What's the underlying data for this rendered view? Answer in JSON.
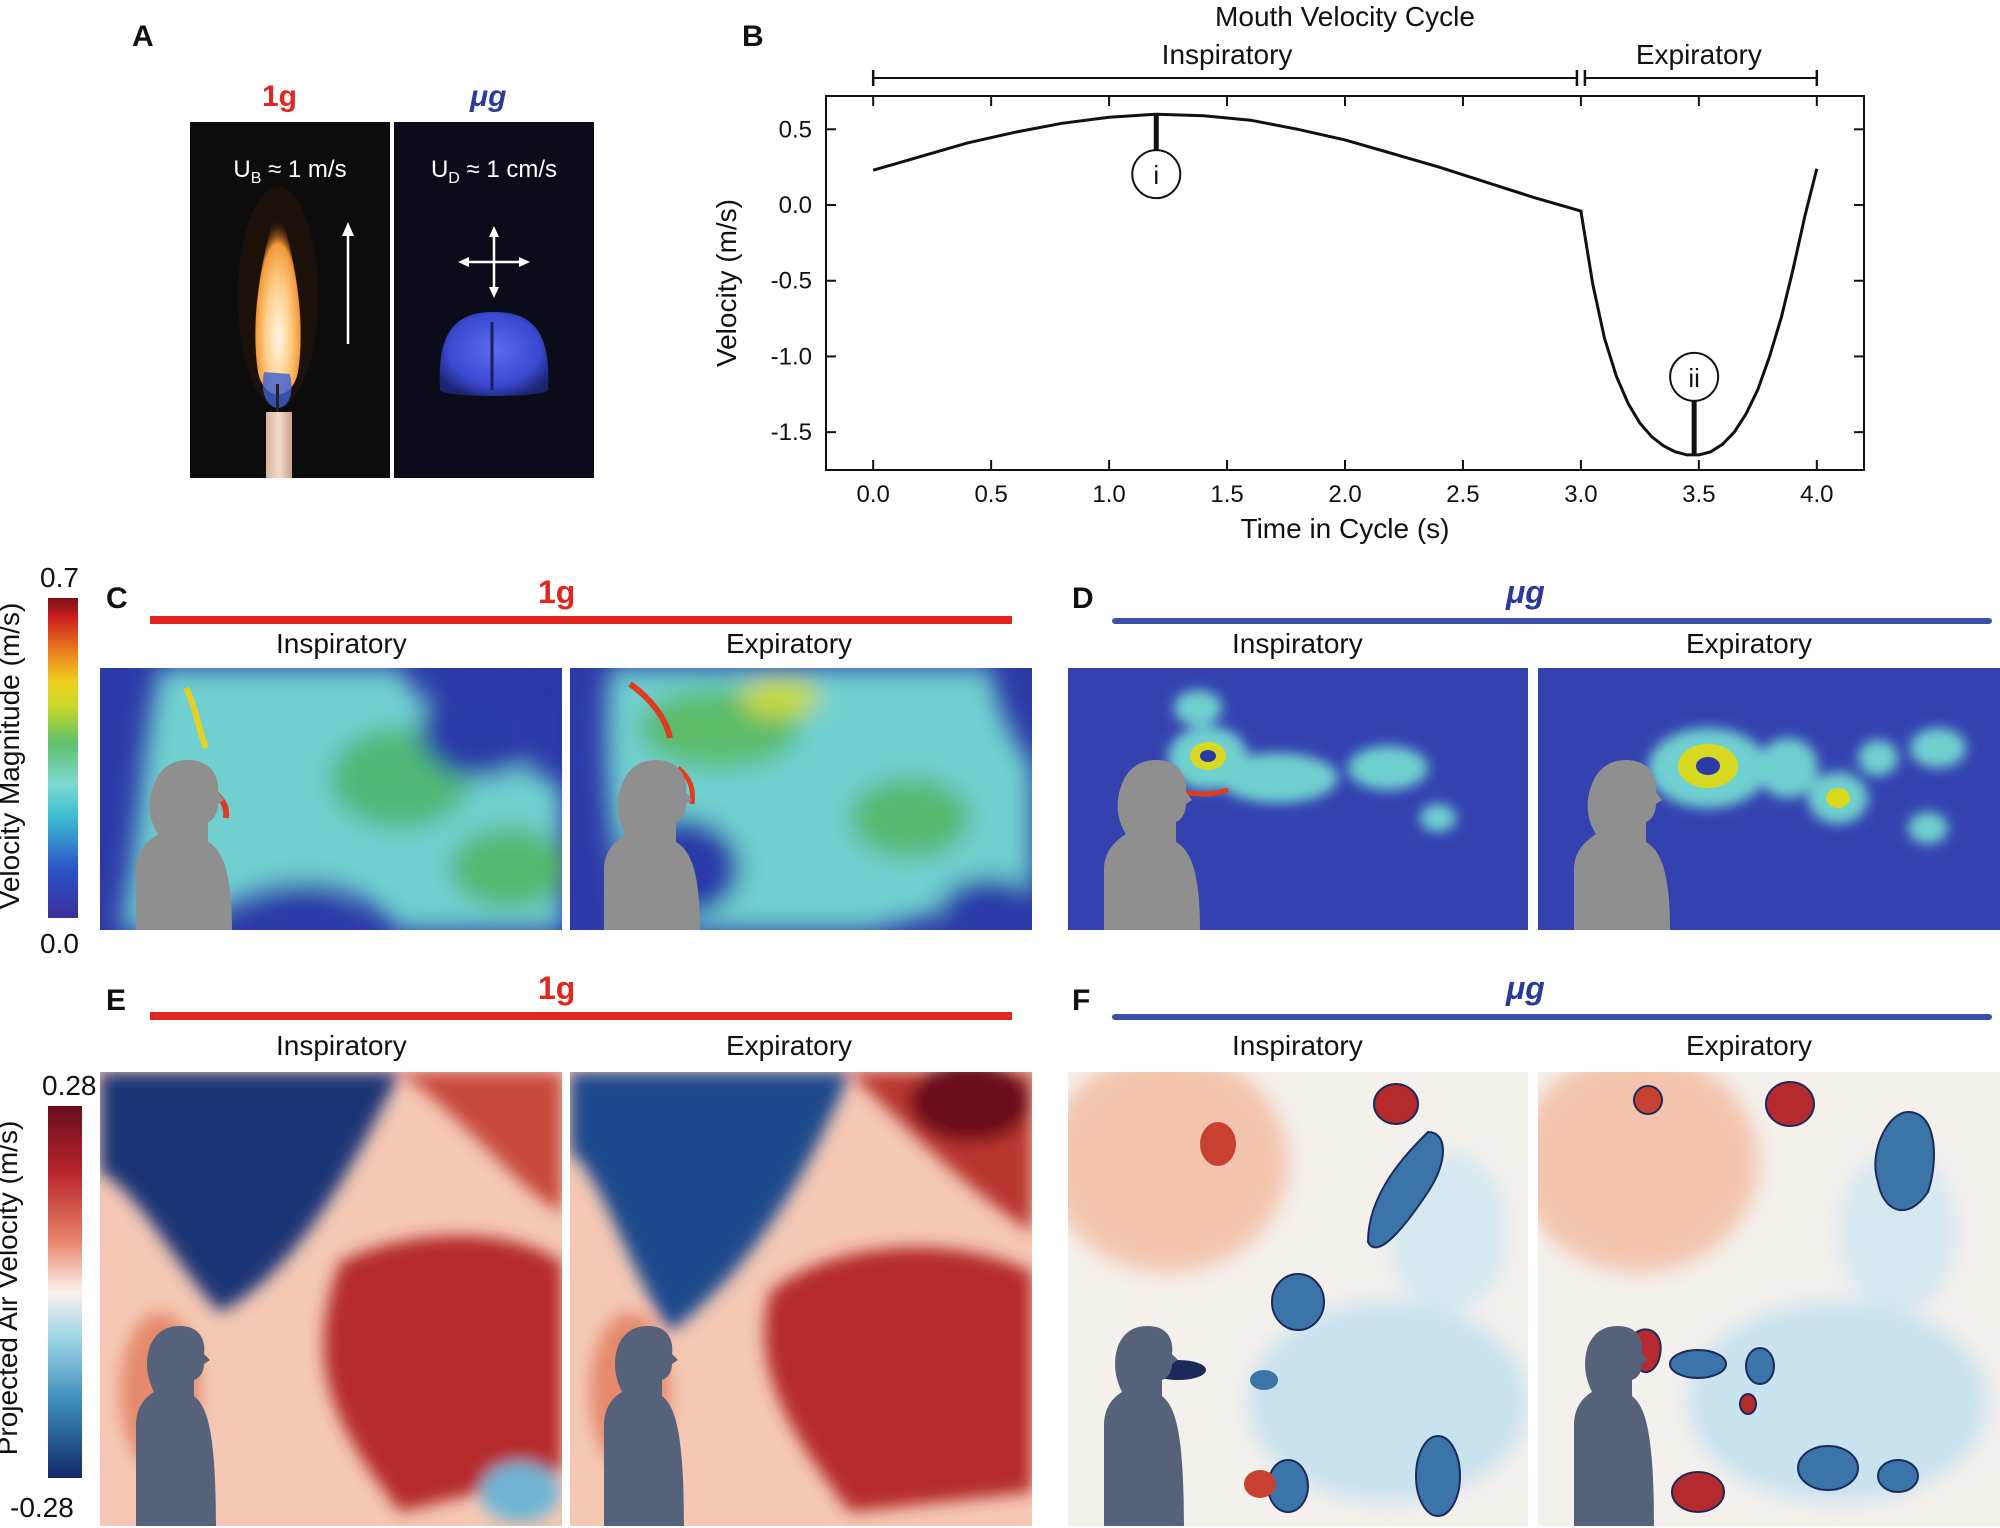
{
  "panels": {
    "a": {
      "letter": "A",
      "label_1g": "1g",
      "label_ug": "μg",
      "buoyant_label": "U_B ≈ 1 m/s",
      "buoyant_sym": "U",
      "buoyant_sub": "B",
      "buoyant_val": " ≈ 1 m/s",
      "diffusive_sym": "U",
      "diffusive_sub": "D",
      "diffusive_val": " ≈ 1 cm/s"
    },
    "b": {
      "letter": "B"
    },
    "c": {
      "letter": "C",
      "condition": "1g",
      "left": "Inspiratory",
      "right": "Expiratory"
    },
    "d": {
      "letter": "D",
      "condition": "μg",
      "left": "Inspiratory",
      "right": "Expiratory"
    },
    "e": {
      "letter": "E",
      "condition": "1g",
      "left": "Inspiratory",
      "right": "Expiratory"
    },
    "f": {
      "letter": "F",
      "condition": "μg",
      "left": "Inspiratory",
      "right": "Expiratory"
    }
  },
  "colorbar_top": {
    "label": "Velocity Magnitude (m/s)",
    "max": "0.7",
    "min": "0.0"
  },
  "colorbar_bottom": {
    "label": "Projected Air Velocity (m/s)",
    "max": "0.28",
    "min": "-0.28"
  },
  "chart_data": {
    "type": "line",
    "title": "Mouth Velocity Cycle",
    "phase_labels": [
      "Inspiratory",
      "Expiratory"
    ],
    "xlabel": "Time in Cycle (s)",
    "ylabel": "Velocity (m/s)",
    "xlim": [
      -0.2,
      4.2
    ],
    "ylim": [
      -1.75,
      0.72
    ],
    "xticks": [
      "0.0",
      "0.5",
      "1.0",
      "1.5",
      "2.0",
      "2.5",
      "3.0",
      "3.5",
      "4.0"
    ],
    "yticks": [
      "0.5",
      "0.0",
      "-0.5",
      "-1.0",
      "-1.5"
    ],
    "markers": [
      {
        "label": "i",
        "x": 1.2,
        "y": 0.6
      },
      {
        "label": "ii",
        "x": 3.48,
        "y": -1.65
      }
    ],
    "series": [
      {
        "name": "mouth velocity",
        "x": [
          0.0,
          0.2,
          0.4,
          0.6,
          0.8,
          1.0,
          1.2,
          1.4,
          1.6,
          1.8,
          2.0,
          2.2,
          2.4,
          2.6,
          2.8,
          3.0,
          3.05,
          3.1,
          3.15,
          3.2,
          3.25,
          3.3,
          3.35,
          3.4,
          3.45,
          3.5,
          3.55,
          3.6,
          3.65,
          3.7,
          3.75,
          3.8,
          3.85,
          3.9,
          3.95,
          4.0
        ],
        "y": [
          0.23,
          0.32,
          0.41,
          0.48,
          0.54,
          0.58,
          0.6,
          0.59,
          0.56,
          0.5,
          0.43,
          0.34,
          0.25,
          0.15,
          0.05,
          -0.04,
          -0.52,
          -0.88,
          -1.13,
          -1.31,
          -1.44,
          -1.53,
          -1.59,
          -1.63,
          -1.65,
          -1.65,
          -1.63,
          -1.58,
          -1.5,
          -1.38,
          -1.22,
          -1.0,
          -0.74,
          -0.42,
          -0.07,
          0.24
        ]
      }
    ]
  }
}
